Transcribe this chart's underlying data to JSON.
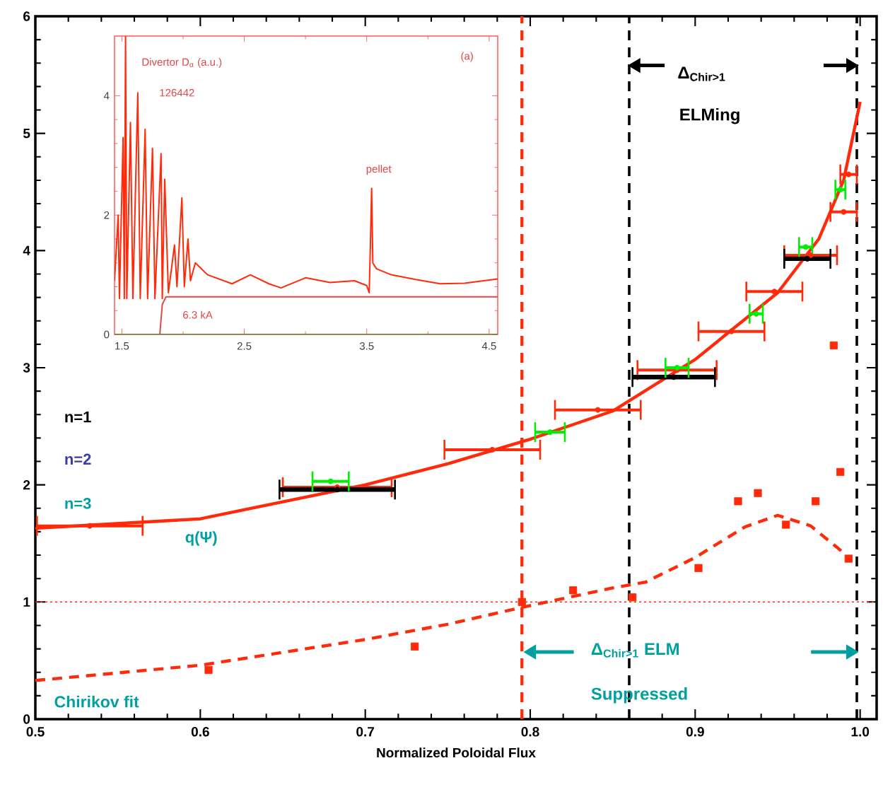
{
  "chart_data": [
    {
      "type": "line",
      "xlabel": "Normalized Poloidal Flux",
      "xlim": [
        0.5,
        1.01
      ],
      "ylim": [
        0,
        6
      ],
      "xticks": [
        0.5,
        0.6,
        0.7,
        0.8,
        0.9,
        {
          "value": 1,
          "label": "1.0"
        }
      ],
      "yticks": [
        0,
        1,
        2,
        3,
        4,
        5,
        6
      ],
      "series": [
        {
          "name": "q(Ψ)",
          "color": "#ff2a0a",
          "x": [
            0.5,
            0.6,
            0.7,
            0.75,
            0.8,
            0.85,
            0.9,
            0.95,
            0.975,
            0.99,
            1.0
          ],
          "values": [
            1.63,
            1.71,
            2.0,
            2.18,
            2.39,
            2.63,
            3.07,
            3.64,
            4.1,
            4.6,
            5.27
          ]
        },
        {
          "type": "scatter",
          "color": "#ff2a0a",
          "x": [
            0.533,
            0.683,
            0.777,
            0.841,
            0.889,
            0.922,
            0.948,
            0.97,
            0.99,
            0.993
          ],
          "values": [
            1.65,
            1.98,
            2.3,
            2.64,
            2.98,
            3.31,
            3.65,
            3.96,
            4.33,
            4.65
          ],
          "xerrors": [
            0.032,
            0.033,
            0.029,
            0.026,
            0.024,
            0.02,
            0.017,
            0.016,
            0.008,
            0.005
          ]
        },
        {
          "type": "scatter",
          "color": "#000000",
          "x": [
            0.683,
            0.887,
            0.968
          ],
          "values": [
            1.96,
            2.92,
            3.93
          ],
          "xerrors": [
            0.035,
            0.025,
            0.014
          ]
        },
        {
          "type": "scatter",
          "color": "#00ee00",
          "x": [
            0.679,
            0.812,
            0.889,
            0.937,
            0.967,
            0.988
          ],
          "values": [
            2.03,
            2.45,
            3.0,
            3.46,
            4.03,
            4.52
          ],
          "xerrors": [
            0.011,
            0.009,
            0.007,
            0.004,
            0.004,
            0.003
          ]
        },
        {
          "type": "scatter",
          "marker": "square",
          "color": "#ff2a0a",
          "x": [
            0.605,
            0.73,
            0.795,
            0.826,
            0.862,
            0.902,
            0.926,
            0.938,
            0.955,
            0.973,
            0.984,
            0.988,
            0.993
          ],
          "values": [
            0.42,
            0.62,
            1.0,
            1.1,
            1.04,
            1.29,
            1.86,
            1.93,
            1.66,
            1.86,
            3.19,
            2.11,
            1.37
          ]
        },
        {
          "line_style": "dashed",
          "color": "#ff2a0a",
          "x": [
            0.5,
            0.6,
            0.7,
            0.75,
            0.8,
            0.85,
            0.87,
            0.9,
            0.93,
            0.95,
            0.97,
            0.99
          ],
          "values": [
            0.33,
            0.46,
            0.68,
            0.81,
            0.97,
            1.12,
            1.17,
            1.38,
            1.64,
            1.74,
            1.65,
            1.42
          ]
        }
      ],
      "ref_lines": [
        {
          "axis": "x",
          "value": 0.795,
          "color": "#ff2a0a",
          "line_style": "dashed"
        },
        {
          "axis": "x",
          "value": 0.86,
          "color": "#000000",
          "line_style": "dashed"
        },
        {
          "axis": "x",
          "value": 0.998,
          "color": "#000000",
          "line_style": "dashed"
        },
        {
          "axis": "y",
          "value": 1,
          "color": "#ff2a0a",
          "line_style": "dotted"
        }
      ],
      "annotations": [
        "Δ$_{Chir>1}$",
        "ELMing",
        "Δ$_{Chir>1}$ ELM",
        "Suppressed",
        "n=1",
        "n=2",
        "n=3",
        "Chirikov fit"
      ]
    },
    {
      "type": "line",
      "xlim": [
        1.44,
        4.57
      ],
      "ylim": [
        0,
        5
      ],
      "xticks": [
        1.5,
        2.5,
        3.5,
        4.5
      ],
      "yticks": [
        0,
        2,
        4
      ],
      "series": [
        {
          "color": "#ff2a0a",
          "x": [
            1.44,
            1.47,
            1.48,
            1.51,
            1.52,
            1.53,
            1.54,
            1.57,
            1.59,
            1.63,
            1.65,
            1.69,
            1.71,
            1.75,
            1.77,
            1.82,
            1.83,
            1.85,
            1.88,
            1.93,
            1.95,
            1.99,
            2.01,
            2.04,
            2.06,
            2.1,
            2.2,
            2.4,
            2.55,
            2.7,
            2.8,
            3.0,
            3.2,
            3.4,
            3.5,
            3.52,
            3.53,
            3.54,
            3.55,
            3.58,
            3.7,
            3.9,
            4.1,
            4.3,
            4.57
          ],
          "values": [
            0.9,
            2.0,
            0.6,
            3.3,
            0.6,
            5.0,
            0.6,
            3.55,
            0.6,
            4.05,
            0.6,
            3.44,
            0.6,
            3.12,
            0.6,
            3.03,
            0.6,
            2.6,
            0.7,
            1.5,
            0.8,
            2.29,
            0.8,
            1.6,
            0.9,
            1.2,
            1.0,
            0.85,
            1.0,
            0.85,
            0.78,
            0.95,
            0.87,
            0.9,
            0.82,
            0.7,
            1.5,
            2.45,
            1.2,
            1.1,
            1.0,
            0.92,
            0.85,
            0.86,
            0.93
          ]
        },
        {
          "color": "#e04848",
          "x": [
            1.44,
            1.81,
            1.83,
            1.86,
            4.57
          ],
          "values": [
            0,
            0,
            0.5,
            0.63,
            0.63
          ]
        },
        {
          "color": "#2a8a2a",
          "x": [
            1.44,
            4.57
          ],
          "values": [
            0,
            0
          ]
        }
      ],
      "annotations": [
        "Divertor D$_{α}$ (a.u.)",
        "126442",
        {
          "text": "pellet",
          "x": 3.54,
          "y": 2.45
        },
        "6.3 kA",
        "(a)"
      ]
    }
  ]
}
